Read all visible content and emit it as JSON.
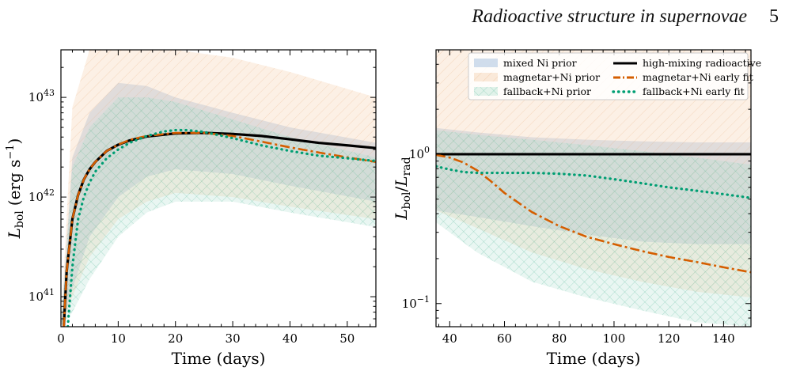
{
  "header": {
    "title": "Radioactive structure in supernovae",
    "page_number": "5"
  },
  "colors": {
    "mixed": "#a9c3e0",
    "magnetar": "#f3c9a3",
    "fallback": "#a8dccb",
    "highmix_line": "#000000",
    "magnetar_line": "#d55e00",
    "fallback_line": "#009e73"
  },
  "chart_data": [
    {
      "id": "left",
      "type": "line",
      "xlabel": "Time (days)",
      "ylabel_main": "L",
      "ylabel_sub": "bol",
      "ylabel_units": "(erg s",
      "ylabel_exp": "−1",
      "ylabel_close": ")",
      "yscale": "log",
      "xlim": [
        0,
        55
      ],
      "ylim": [
        5e+40,
        3e+43
      ],
      "xticks": [
        0,
        10,
        20,
        30,
        40,
        50
      ],
      "yticks": [
        {
          "value": 1e+41,
          "base": "10",
          "exp": "41"
        },
        {
          "value": 1e+42,
          "base": "10",
          "exp": "42"
        },
        {
          "value": 1e+43,
          "base": "10",
          "exp": "43"
        }
      ],
      "bands": [
        {
          "name": "mixed Ni prior",
          "color_key": "mixed",
          "x": [
            0,
            2,
            5,
            10,
            15,
            20,
            30,
            40,
            55
          ],
          "lower": [
            5e+40,
            1.2e+41,
            4e+41,
            1e+42,
            1.6e+42,
            1.9e+42,
            1.7e+42,
            1.3e+42,
            9e+41
          ],
          "upper": [
            5e+40,
            2.5e+42,
            7e+42,
            1.4e+43,
            1.3e+43,
            1e+43,
            7e+42,
            5e+42,
            3.5e+42
          ]
        },
        {
          "name": "magnetar+Ni prior",
          "color_key": "magnetar",
          "x": [
            0,
            2,
            5,
            10,
            15,
            20,
            30,
            40,
            55
          ],
          "lower": [
            5e+40,
            1e+41,
            2.5e+41,
            6e+41,
            9e+41,
            1.1e+42,
            1e+42,
            8e+41,
            6e+41
          ],
          "upper": [
            5e+40,
            8e+42,
            3e+43,
            3e+43,
            3e+43,
            3e+43,
            2.5e+43,
            1.8e+43,
            1e+43
          ]
        },
        {
          "name": "fallback+Ni prior",
          "color_key": "fallback",
          "x": [
            0,
            2,
            5,
            10,
            15,
            20,
            30,
            40,
            55
          ],
          "lower": [
            5e+40,
            7e+40,
            1.5e+41,
            4e+41,
            7e+41,
            9e+41,
            9e+41,
            7e+41,
            5e+41
          ],
          "upper": [
            5e+40,
            2e+42,
            5e+42,
            1e+43,
            1e+43,
            9e+42,
            6e+42,
            4e+42,
            2.5e+42
          ]
        }
      ],
      "series": [
        {
          "name": "high-mixing radioactive",
          "color_key": "highmix_line",
          "dash": "solid",
          "x": [
            0.5,
            1,
            2,
            3,
            4,
            5,
            6,
            8,
            10,
            12,
            15,
            20,
            25,
            30,
            35,
            40,
            45,
            50,
            55
          ],
          "y": [
            5e+40,
            1.8e+41,
            6e+41,
            1.05e+42,
            1.5e+42,
            1.9e+42,
            2.25e+42,
            2.9e+42,
            3.35e+42,
            3.7e+42,
            4.05e+42,
            4.35e+42,
            4.4e+42,
            4.3e+42,
            4.1e+42,
            3.8e+42,
            3.5e+42,
            3.3e+42,
            3.1e+42
          ]
        },
        {
          "name": "magnetar+Ni early fit",
          "color_key": "magnetar_line",
          "dash": "dashdot",
          "x": [
            0.5,
            1,
            2,
            3,
            4,
            5,
            6,
            8,
            10,
            12,
            15,
            20,
            25,
            30,
            35,
            40,
            45,
            50,
            55
          ],
          "y": [
            5e+40,
            1.8e+41,
            6e+41,
            1.05e+42,
            1.5e+42,
            1.9e+42,
            2.25e+42,
            2.9e+42,
            3.35e+42,
            3.75e+42,
            4.1e+42,
            4.4e+42,
            4.4e+42,
            4.1e+42,
            3.6e+42,
            3.15e+42,
            2.8e+42,
            2.5e+42,
            2.25e+42
          ]
        },
        {
          "name": "fallback+Ni early fit",
          "color_key": "fallback_line",
          "dash": "dotted",
          "x": [
            1.2,
            2,
            3,
            4,
            5,
            6,
            8,
            10,
            12,
            15,
            18,
            20,
            22,
            25,
            30,
            35,
            40,
            45,
            50,
            55
          ],
          "y": [
            5e+40,
            2e+41,
            6e+41,
            1e+42,
            1.4e+42,
            1.8e+42,
            2.45e+42,
            3e+42,
            3.5e+42,
            4.1e+42,
            4.55e+42,
            4.7e+42,
            4.7e+42,
            4.5e+42,
            3.9e+42,
            3.3e+42,
            2.9e+42,
            2.6e+42,
            2.45e+42,
            2.3e+42
          ]
        }
      ]
    },
    {
      "id": "right",
      "type": "line",
      "xlabel": "Time (days)",
      "ylabel_main": "L",
      "ylabel_sub": "bol",
      "ylabel_slash": "/",
      "ylabel_main2": "L",
      "ylabel_sub2": "rad",
      "yscale": "log",
      "xlim": [
        35,
        150
      ],
      "ylim": [
        0.07,
        5
      ],
      "xticks": [
        40,
        60,
        80,
        100,
        120,
        140
      ],
      "yticks": [
        {
          "value": 0.1,
          "base": "10",
          "exp": "−1"
        },
        {
          "value": 1,
          "base": "10",
          "exp": "0"
        }
      ],
      "bands": [
        {
          "name": "mixed Ni prior",
          "color_key": "mixed",
          "x": [
            35,
            50,
            70,
            90,
            110,
            130,
            150
          ],
          "lower": [
            0.42,
            0.38,
            0.33,
            0.29,
            0.26,
            0.25,
            0.25
          ],
          "upper": [
            1.5,
            1.4,
            1.3,
            1.25,
            1.22,
            1.2,
            1.2
          ]
        },
        {
          "name": "magnetar+Ni prior",
          "color_key": "magnetar",
          "x": [
            35,
            50,
            70,
            90,
            110,
            130,
            150
          ],
          "lower": [
            0.42,
            0.32,
            0.22,
            0.17,
            0.14,
            0.12,
            0.11
          ],
          "upper": [
            5,
            5,
            5,
            5,
            5,
            5,
            5
          ]
        },
        {
          "name": "fallback+Ni prior",
          "color_key": "fallback",
          "x": [
            35,
            50,
            70,
            90,
            110,
            130,
            150
          ],
          "lower": [
            0.35,
            0.22,
            0.14,
            0.11,
            0.09,
            0.075,
            0.07
          ],
          "upper": [
            1.45,
            1.35,
            1.25,
            1.15,
            1.05,
            0.95,
            0.85
          ]
        }
      ],
      "series": [
        {
          "name": "high-mixing radioactive",
          "color_key": "highmix_line",
          "dash": "solid",
          "x": [
            35,
            150
          ],
          "y": [
            1.0,
            1.0
          ]
        },
        {
          "name": "magnetar+Ni early fit",
          "color_key": "magnetar_line",
          "dash": "dashdot",
          "x": [
            35,
            40,
            45,
            50,
            55,
            60,
            70,
            80,
            90,
            100,
            110,
            120,
            130,
            140,
            150
          ],
          "y": [
            0.99,
            0.95,
            0.88,
            0.78,
            0.66,
            0.55,
            0.41,
            0.33,
            0.28,
            0.25,
            0.225,
            0.205,
            0.19,
            0.175,
            0.162
          ]
        },
        {
          "name": "fallback+Ni early fit",
          "color_key": "fallback_line",
          "dash": "dotted",
          "x": [
            35,
            40,
            45,
            50,
            60,
            70,
            80,
            90,
            100,
            110,
            120,
            130,
            140,
            150
          ],
          "y": [
            0.83,
            0.79,
            0.76,
            0.75,
            0.75,
            0.75,
            0.74,
            0.72,
            0.68,
            0.64,
            0.6,
            0.57,
            0.54,
            0.51
          ]
        }
      ],
      "legend": {
        "position": "top",
        "entries": [
          {
            "label": "mixed Ni prior",
            "kind": "band",
            "color_key": "mixed"
          },
          {
            "label": "magnetar+Ni prior",
            "kind": "band",
            "color_key": "magnetar"
          },
          {
            "label": "fallback+Ni prior",
            "kind": "band",
            "color_key": "fallback"
          },
          {
            "label": "high-mixing radioactive",
            "kind": "line",
            "color_key": "highmix_line",
            "dash": "solid"
          },
          {
            "label": "magnetar+Ni early fit",
            "kind": "line",
            "color_key": "magnetar_line",
            "dash": "dashdot"
          },
          {
            "label": "fallback+Ni early fit",
            "kind": "line",
            "color_key": "fallback_line",
            "dash": "dotted"
          }
        ]
      }
    }
  ]
}
